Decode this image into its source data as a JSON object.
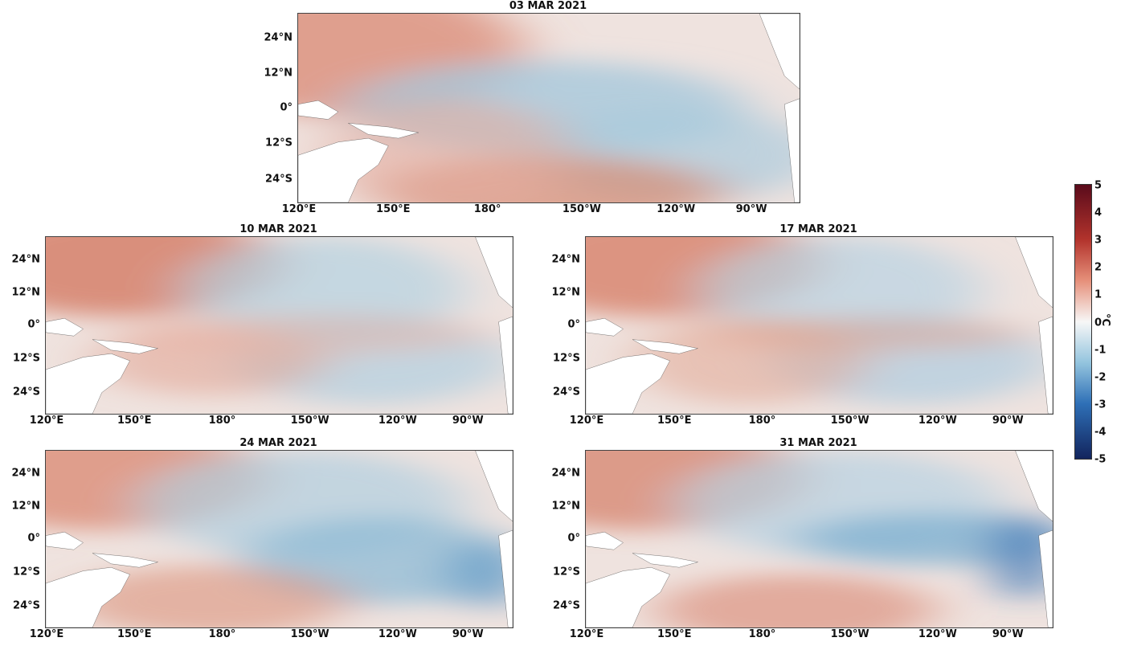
{
  "panels": [
    {
      "title": "03 MAR 2021"
    },
    {
      "title": "10 MAR 2021"
    },
    {
      "title": "17 MAR 2021"
    },
    {
      "title": "24 MAR 2021"
    },
    {
      "title": "31 MAR 2021"
    }
  ],
  "axes": {
    "lat_labels": [
      "24°N",
      "12°N",
      "0°",
      "12°S",
      "24°S"
    ],
    "lon_labels": [
      "120°E",
      "150°E",
      "180°",
      "150°W",
      "120°W",
      "90°W"
    ]
  },
  "colorbar": {
    "ticks": [
      "5",
      "4",
      "3",
      "2",
      "1",
      "0",
      "-1",
      "-2",
      "-3",
      "-4",
      "-5"
    ],
    "unit": "°C",
    "colors": {
      "warm_max": "#5a0b1b",
      "warm": "#b2332c",
      "neutral": "#f7f7f7",
      "cool": "#2e6fb6",
      "cool_max": "#12245d"
    }
  }
}
